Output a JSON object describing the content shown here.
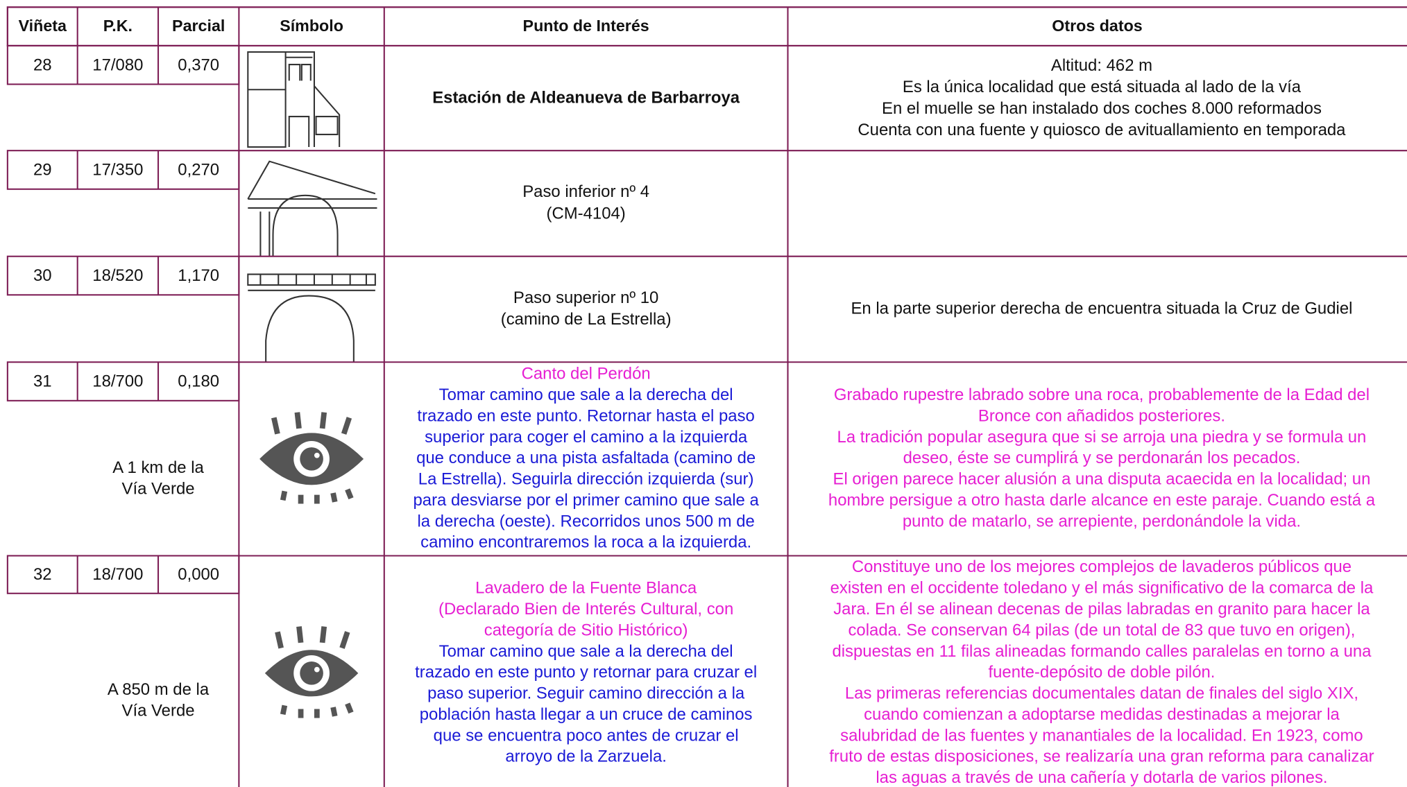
{
  "table": {
    "header": [
      "Viñeta",
      "P.K.",
      "Parcial",
      "Símbolo",
      "Punto de Interés",
      "Otros datos"
    ],
    "rows": [
      {
        "vineta": "28",
        "pk": "17/080",
        "parcial": "0,370",
        "note": [],
        "poi_title": [
          "Estación de Aldeanueva de Barbarroya"
        ],
        "poi_body": [],
        "otros": [
          "Altitud: 462 m",
          "Es la única localidad que está situada al lado de la vía",
          "En el muelle se han instalado dos coches 8.000 reformados",
          "Cuenta con una fuente y quiosco de avituallamiento en temporada"
        ]
      },
      {
        "vineta": "29",
        "pk": "17/350",
        "parcial": "0,270",
        "note": [],
        "poi_title": [
          "Paso inferior nº 4",
          "(CM-4104)"
        ],
        "poi_body": [],
        "otros": []
      },
      {
        "vineta": "30",
        "pk": "18/520",
        "parcial": "1,170",
        "note": [],
        "poi_title": [
          "Paso superior nº 10",
          "(camino de La Estrella)"
        ],
        "poi_body": [],
        "otros": [
          "En la parte superior derecha de encuentra situada la Cruz de Gudiel"
        ]
      },
      {
        "vineta": "31",
        "pk": "18/700",
        "parcial": "0,180",
        "note": [
          "A 1 km de la",
          "Vía Verde"
        ],
        "poi_title": [
          "Canto del Perdón"
        ],
        "poi_body": [
          "Tomar camino que sale a la derecha del",
          "trazado en este punto. Retornar hasta el paso",
          "superior para coger el camino a la izquierda",
          "que conduce a una pista asfaltada (camino de",
          "La Estrella). Seguirla dirección izquierda (sur)",
          "para desviarse por el primer camino que sale a",
          "la derecha (oeste). Recorridos unos 500 m de",
          "camino encontraremos la roca a la izquierda."
        ],
        "otros": [
          "Grabado rupestre labrado sobre una roca, probablemente de la Edad del",
          "Bronce con añadidos posteriores.",
          "La tradición popular asegura que si se arroja una piedra y se formula un",
          "deseo, éste se cumplirá y se perdonarán los pecados.",
          "El origen parece hacer alusión a una disputa acaecida en la localidad; un",
          "hombre persigue a otro hasta darle alcance en este paraje. Cuando está a",
          "punto de matarlo, se arrepiente, perdonándole la vida."
        ]
      },
      {
        "vineta": "32",
        "pk": "18/700",
        "parcial": "0,000",
        "note": [
          "A 850 m de la",
          "Vía Verde"
        ],
        "poi_title": [
          "Lavadero de la Fuente Blanca",
          "(Declarado Bien de Interés Cultural, con",
          "categoría de Sitio Histórico)"
        ],
        "poi_body": [
          "Tomar camino que sale a la derecha del",
          "trazado en este punto y retornar para cruzar el",
          "paso superior. Seguir camino dirección a la",
          "población hasta llegar a un cruce de caminos",
          "que se encuentra poco antes de cruzar el",
          "arroyo de la Zarzuela."
        ],
        "otros": [
          "Constituye uno de los mejores complejos de lavaderos públicos que",
          "existen en el occidente toledano y el más significativo de la comarca de la",
          "Jara. En él se alinean decenas de pilas labradas en granito para hacer la",
          "colada. Se conservan 64 pilas (de un total de 83 que tuvo en origen),",
          "dispuestas en 11 filas alineadas formando calles paralelas en torno a una",
          "fuente-depósito de doble pilón.",
          "Las primeras referencias documentales datan de finales del siglo XIX,",
          "cuando comienzan a adoptarse medidas destinadas a mejorar la",
          "salubridad de las fuentes y manantiales de la localidad. En 1923, como",
          "fruto de estas disposiciones, se realizaría una gran reforma para canalizar",
          "las aguas a través de una cañería y dotarla de varios pilones."
        ]
      }
    ]
  }
}
